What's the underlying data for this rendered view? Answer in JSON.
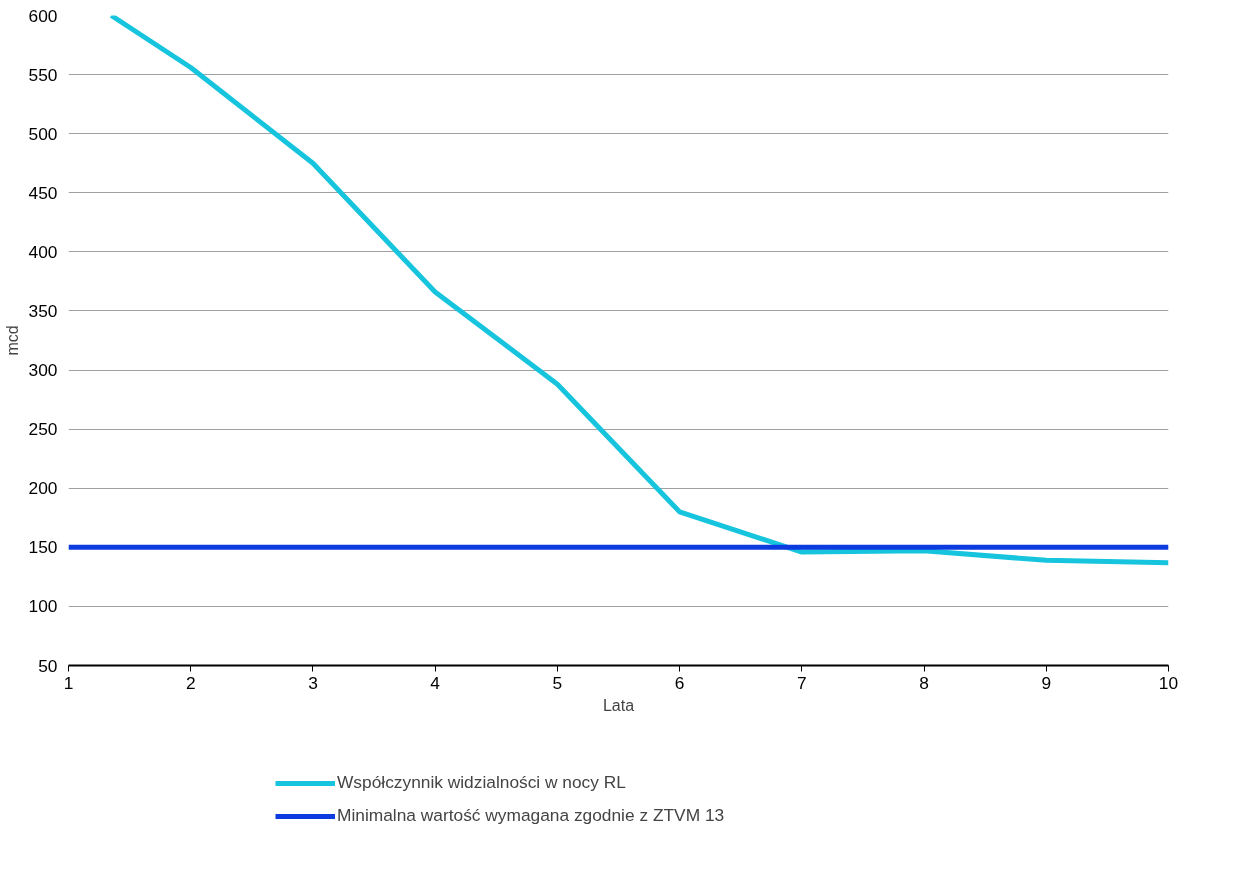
{
  "chart_data": {
    "type": "line",
    "xlabel": "Lata",
    "ylabel": "mcd",
    "xlim": [
      1,
      10
    ],
    "xticks": [
      1,
      2,
      3,
      4,
      5,
      6,
      7,
      8,
      9,
      10
    ],
    "ylim": [
      50,
      600
    ],
    "yticks": [
      50,
      100,
      150,
      200,
      250,
      300,
      350,
      400,
      450,
      500,
      550,
      600
    ],
    "grid": "y",
    "legend": "bottom",
    "marker": "none",
    "line_style": "solid",
    "series": [
      {
        "name": "Współczynnik widzialności w nocy RL",
        "color": "#17c4de",
        "x": [
          1.35,
          2,
          3,
          4,
          5,
          6,
          7,
          8,
          9,
          10
        ],
        "values": [
          600,
          556,
          475,
          366,
          288,
          180,
          146,
          147,
          139,
          137
        ]
      },
      {
        "name": "Minimalna wartość wymagana zgodnie z ZTVM 13",
        "color": "#0c3be0",
        "x": [
          1,
          2,
          3,
          4,
          5,
          6,
          7,
          8,
          9,
          10
        ],
        "values": [
          150,
          150,
          150,
          150,
          150,
          150,
          150,
          150,
          150,
          150
        ]
      }
    ]
  }
}
